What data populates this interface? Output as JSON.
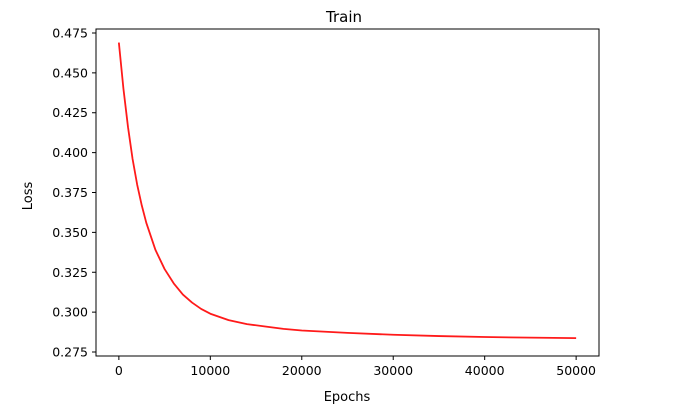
{
  "chart_data": {
    "type": "line",
    "title": "Train",
    "xlabel": "Epochs",
    "ylabel": "Loss",
    "xlim": [
      -2500,
      52500
    ],
    "ylim": [
      0.2725,
      0.4775
    ],
    "xticks": [
      0,
      10000,
      20000,
      30000,
      40000,
      50000
    ],
    "xtick_labels": [
      "0",
      "10000",
      "20000",
      "30000",
      "40000",
      "50000"
    ],
    "yticks": [
      0.275,
      0.3,
      0.325,
      0.35,
      0.375,
      0.4,
      0.425,
      0.45,
      0.475
    ],
    "ytick_labels": [
      "0.275",
      "0.300",
      "0.325",
      "0.350",
      "0.375",
      "0.400",
      "0.425",
      "0.450",
      "0.475"
    ],
    "grid": false,
    "legend": false,
    "series": [
      {
        "color": "#ff1a1a",
        "x": [
          0,
          500,
          1000,
          1500,
          2000,
          2500,
          3000,
          4000,
          5000,
          6000,
          7000,
          8000,
          9000,
          10000,
          12000,
          14000,
          16000,
          18000,
          20000,
          25000,
          30000,
          35000,
          40000,
          45000,
          50000
        ],
        "y": [
          0.469,
          0.44,
          0.416,
          0.396,
          0.38,
          0.367,
          0.356,
          0.339,
          0.327,
          0.318,
          0.311,
          0.306,
          0.302,
          0.299,
          0.295,
          0.2925,
          0.291,
          0.2895,
          0.2885,
          0.287,
          0.2858,
          0.285,
          0.2844,
          0.284,
          0.2837
        ]
      }
    ]
  }
}
